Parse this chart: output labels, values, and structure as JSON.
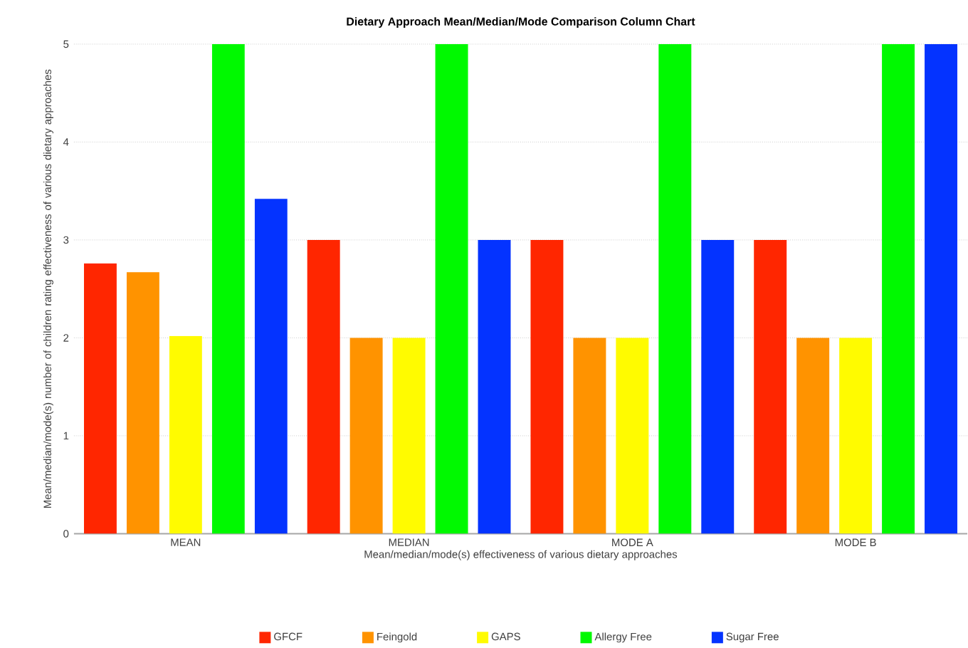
{
  "chart_data": {
    "type": "bar",
    "title": "Dietary Approach Mean/Median/Mode Comparison Column Chart",
    "xlabel": "Mean/median/mode(s) effectiveness of various dietary approaches",
    "ylabel": "Mean/median/mode(s) number of children  rating effectiveness of various dietary approaches",
    "categories": [
      "MEAN",
      "MEDIAN",
      "MODE A",
      "MODE B"
    ],
    "series": [
      {
        "name": "GFCF",
        "color": "#ff2600",
        "values": [
          2.76,
          3,
          3,
          3
        ]
      },
      {
        "name": "Feingold",
        "color": "#ff9300",
        "values": [
          2.67,
          2,
          2,
          2
        ]
      },
      {
        "name": "GAPS",
        "color": "#fffb00",
        "values": [
          2.02,
          2,
          2,
          2
        ]
      },
      {
        "name": "Allergy Free",
        "color": "#00f900",
        "values": [
          5,
          5,
          5,
          5
        ]
      },
      {
        "name": "Sugar Free",
        "color": "#0433ff",
        "values": [
          3.42,
          3,
          3,
          5
        ]
      }
    ],
    "ylim": [
      0,
      5
    ],
    "yticks": [
      0,
      1,
      2,
      3,
      4,
      5
    ],
    "grid": "y",
    "legend": "bottom"
  }
}
